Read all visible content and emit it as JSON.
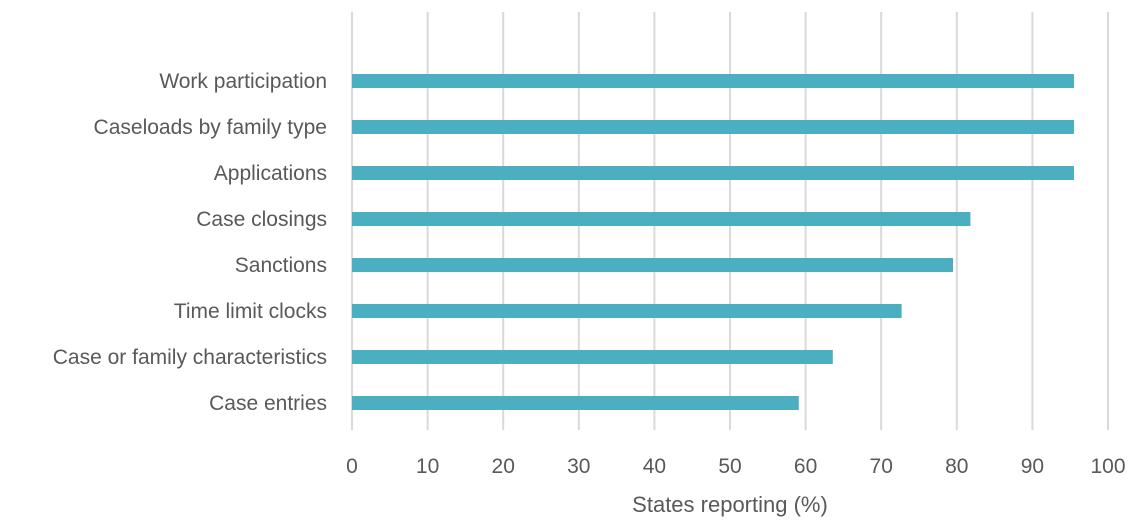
{
  "chart_data": {
    "type": "bar",
    "orientation": "horizontal",
    "title": "",
    "categories": [
      "Work participation",
      "Caseloads by family type",
      "Applications",
      "Case closings",
      "Sanctions",
      "Time limit clocks",
      "Case or family characteristics",
      "Case entries"
    ],
    "values": [
      95.5,
      95.5,
      95.5,
      81.8,
      79.5,
      72.7,
      63.6,
      59.1
    ],
    "xlabel": "States reporting (%)",
    "ylabel": "",
    "xlim": [
      0,
      100
    ],
    "x_ticks": [
      0,
      10,
      20,
      30,
      40,
      50,
      60,
      70,
      80,
      90,
      100
    ],
    "grid": "vertical",
    "legend": "none",
    "bar_color": "#4bafc1"
  }
}
